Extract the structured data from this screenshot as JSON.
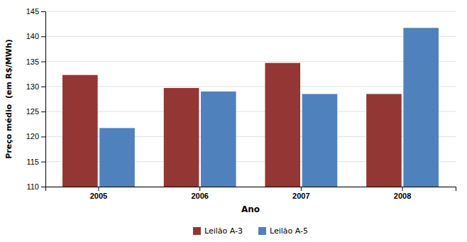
{
  "chart_data": {
    "type": "bar",
    "categories": [
      "2005",
      "2006",
      "2007",
      "2008"
    ],
    "series": [
      {
        "name": "Leilão A-3",
        "color": "#943634",
        "values": [
          132.3,
          129.7,
          134.7,
          128.5
        ]
      },
      {
        "name": "Leilão A-5",
        "color": "#4F81BD",
        "values": [
          121.7,
          129.0,
          128.5,
          141.7
        ]
      }
    ],
    "xlabel": "Ano",
    "ylabel": "Preço médio  (em R$/MWh)",
    "ylim": [
      110,
      145
    ],
    "yticks": [
      110,
      115,
      120,
      125,
      130,
      135,
      140,
      145
    ],
    "grid": true,
    "legend": "bottom"
  }
}
